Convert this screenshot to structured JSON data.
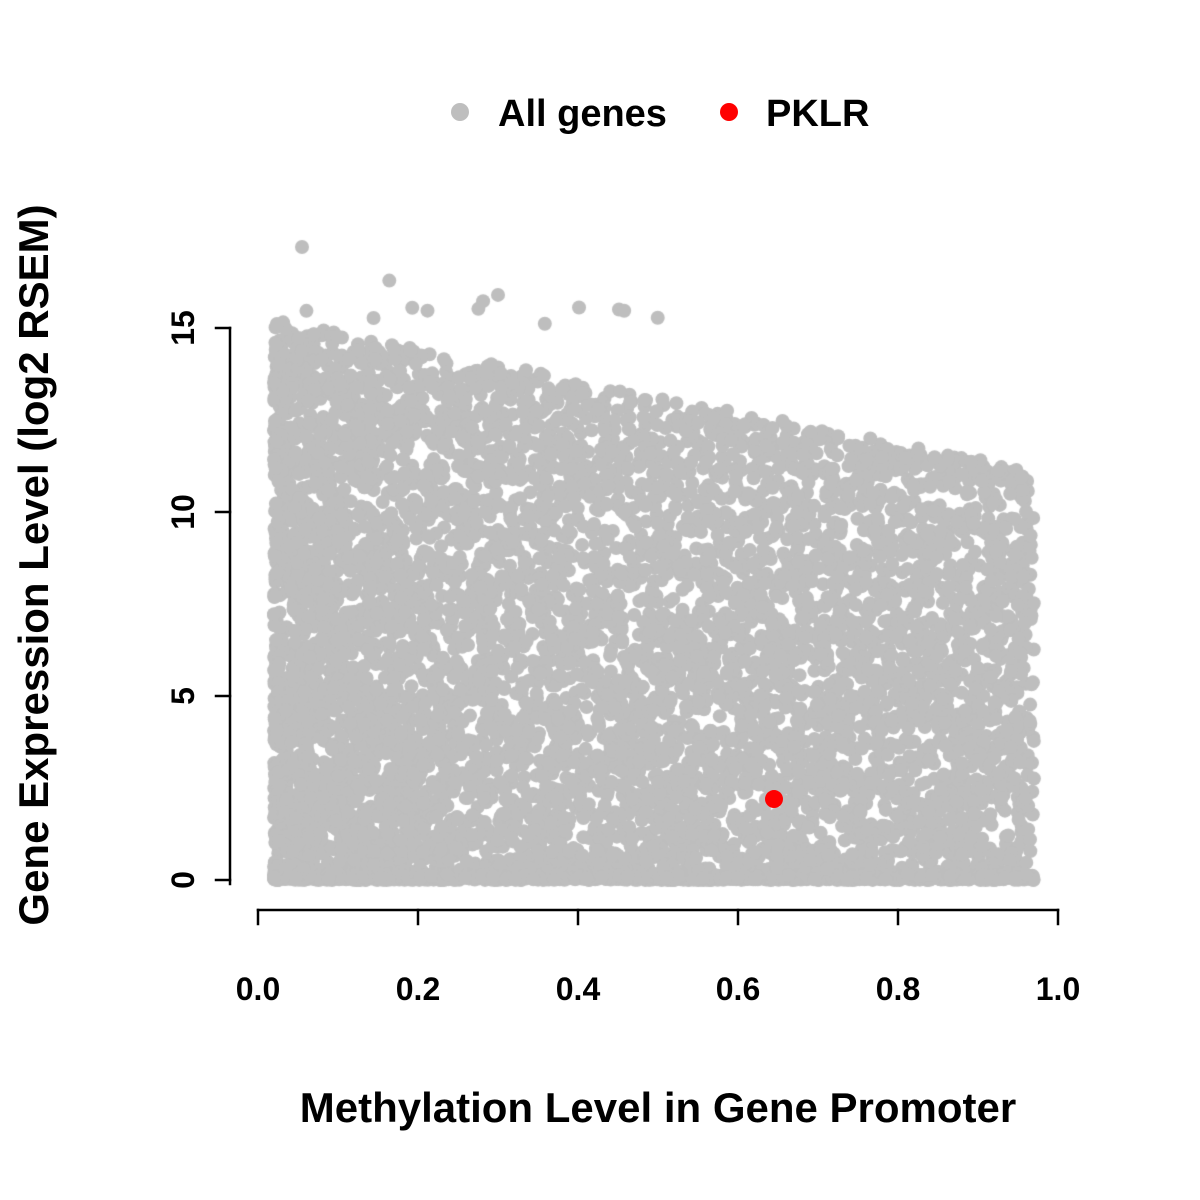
{
  "legend": {
    "items": [
      {
        "label": "All genes",
        "color": "#bebebe",
        "marker": "filled-circle"
      },
      {
        "label": "PKLR",
        "color": "#ff0000",
        "marker": "filled-circle"
      }
    ],
    "position": "top-center"
  },
  "chart_data": {
    "type": "scatter",
    "title": "",
    "xlabel": "Methylation Level in Gene Promoter",
    "ylabel": "Gene Expression Level (log2 RSEM)",
    "xlim": [
      0.0,
      1.0
    ],
    "ylim": [
      0,
      17.5
    ],
    "x_tick_values": [
      0.0,
      0.2,
      0.4,
      0.6,
      0.8,
      1.0
    ],
    "x_tick_labels": [
      "0.0",
      "0.2",
      "0.4",
      "0.6",
      "0.8",
      "1.0"
    ],
    "y_tick_values": [
      0,
      5,
      10,
      15
    ],
    "y_tick_labels": [
      "0",
      "5",
      "10",
      "15"
    ],
    "grid": false,
    "legend_position": "top-center",
    "series": [
      {
        "name": "All genes",
        "color": "#bebebe",
        "kind": "dense-cloud",
        "n_points": 8200,
        "x_range": [
          0.02,
          0.97
        ],
        "y_range": [
          0,
          17.2
        ],
        "upper_envelope": "y_max ≈ 15.3 − 4.3·x (maximum expression falls as promoter methylation rises)",
        "outliers_above_15": 14,
        "generator": {
          "seed": 20240117,
          "x_skew_exponent": 1.3,
          "y_skew_exponent": 1.15,
          "bottom_band_fraction": 0.16,
          "point_radius_px": 7
        }
      },
      {
        "name": "PKLR",
        "color": "#ff0000",
        "kind": "highlight-point",
        "points": [
          {
            "x": 0.645,
            "y": 2.2
          }
        ]
      }
    ]
  }
}
